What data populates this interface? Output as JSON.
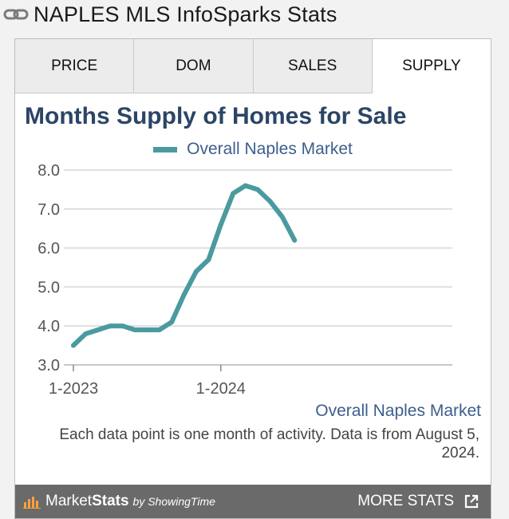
{
  "header": {
    "title": "NAPLES MLS InfoSparks Stats"
  },
  "tabs": [
    {
      "label": "PRICE",
      "active": false
    },
    {
      "label": "DOM",
      "active": false
    },
    {
      "label": "SALES",
      "active": false
    },
    {
      "label": "SUPPLY",
      "active": true
    }
  ],
  "chart_data": {
    "type": "line",
    "title": "Months Supply of Homes for Sale",
    "x_tick_labels": [
      "1-2023",
      "1-2024"
    ],
    "x": [
      "2023-01",
      "2023-02",
      "2023-03",
      "2023-04",
      "2023-05",
      "2023-06",
      "2023-07",
      "2023-08",
      "2023-09",
      "2023-10",
      "2023-11",
      "2023-12",
      "2024-01",
      "2024-02",
      "2024-03",
      "2024-04",
      "2024-05",
      "2024-06",
      "2024-07"
    ],
    "series": [
      {
        "name": "Overall Naples Market",
        "color": "#4a9aa0",
        "values": [
          3.5,
          3.8,
          3.9,
          4.0,
          4.0,
          3.9,
          3.9,
          3.9,
          4.1,
          4.8,
          5.4,
          5.7,
          6.6,
          7.4,
          7.6,
          7.5,
          7.2,
          6.8,
          6.2
        ]
      }
    ],
    "yticks": [
      3.0,
      4.0,
      5.0,
      6.0,
      7.0,
      8.0
    ],
    "ylim": [
      3.0,
      8.0
    ],
    "grid": true,
    "legend_position": "top"
  },
  "source_label": "Overall Naples Market",
  "note": "Each data point is one month of activity. Data is from August 5, 2024.",
  "footer": {
    "brand_market": "Market",
    "brand_stats": "Stats",
    "brand_by": "by ShowingTime",
    "more_label": "MORE STATS"
  },
  "icons": {
    "header": "link-icon",
    "brand": "bar-chart-icon",
    "more": "external-link-icon"
  }
}
